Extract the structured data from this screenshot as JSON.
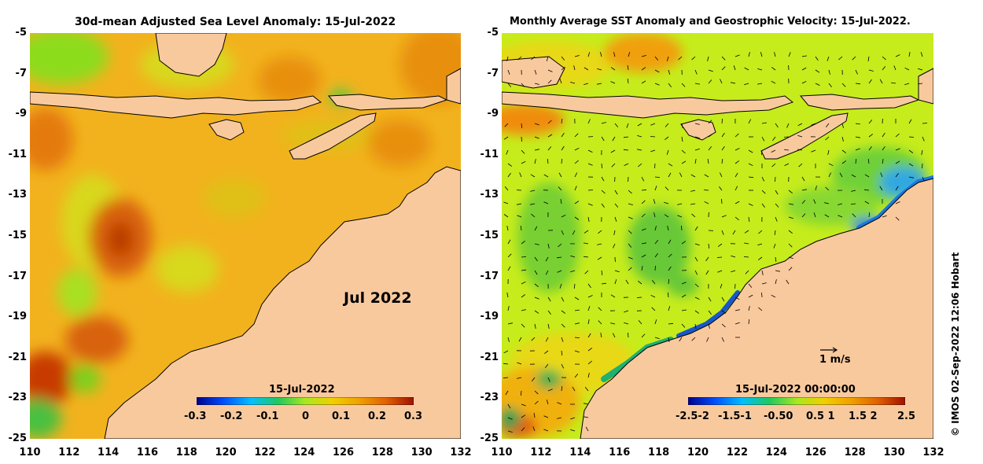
{
  "left_panel": {
    "title": "30d-mean Adjusted Sea Level Anomaly: 15-Jul-2022",
    "month_label": "Jul 2022",
    "colorbar": {
      "title": "15-Jul-2022",
      "ticks": [
        "-0.3",
        "-0.2",
        "-0.1",
        "0",
        "0.1",
        "0.2",
        "0.3"
      ],
      "colors": [
        "#00008c",
        "#0050ff",
        "#00c0ff",
        "#20c860",
        "#a8e820",
        "#f0d000",
        "#f0a000",
        "#e06000",
        "#a01000"
      ]
    }
  },
  "right_panel": {
    "title": "Monthly Average SST Anomaly  and Geostrophic Velocity: 15-Jul-2022.",
    "scale_label": "1 m/s",
    "colorbar": {
      "title": "15-Jul-2022 00:00:00",
      "ticks": [
        "-2.5-2",
        "-1.5-1",
        "-0.50",
        "0.5 1",
        "1.5 2",
        "2.5"
      ],
      "colors": [
        "#00008c",
        "#0050ff",
        "#00c0ff",
        "#20c860",
        "#a8e820",
        "#f0d000",
        "#f0a000",
        "#e06000",
        "#a01000"
      ]
    }
  },
  "axes": {
    "lat_ticks": [
      "-5",
      "-7",
      "-9",
      "-11",
      "-13",
      "-15",
      "-17",
      "-19",
      "-21",
      "-23",
      "-25"
    ],
    "lon_ticks": [
      "110",
      "112",
      "114",
      "116",
      "118",
      "120",
      "122",
      "124",
      "126",
      "128",
      "130",
      "132"
    ],
    "lat_range": [
      -25,
      -5
    ],
    "lon_range": [
      110,
      132
    ]
  },
  "credit": "© IMOS 02-Sep-2022 12:06 Hobart",
  "colors": {
    "land": "#f9c99e",
    "ocean_left": "#f2b21e",
    "ocean_right": "#c6ec1c"
  }
}
